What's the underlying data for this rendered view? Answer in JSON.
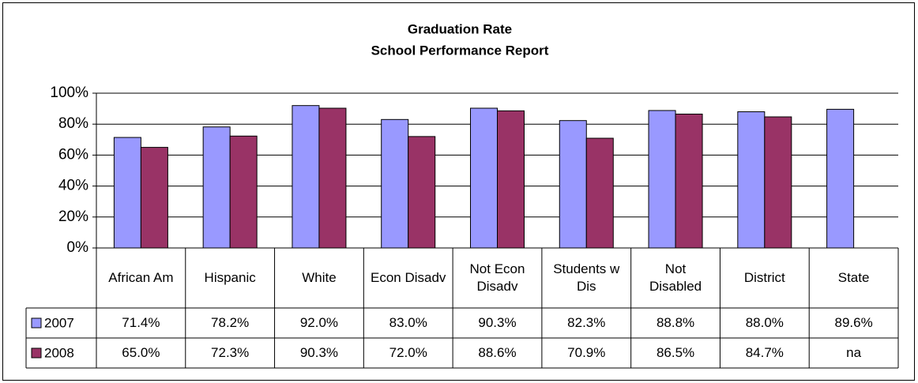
{
  "chart_data": {
    "type": "bar",
    "title": "Graduation Rate",
    "subtitle": "School Performance Report",
    "categories": [
      "African Am",
      "Hispanic",
      "White",
      "Econ Disadv",
      "Not Econ Disadv",
      "Students w Dis",
      "Not Disabled",
      "District",
      "State"
    ],
    "series": [
      {
        "name": "2007",
        "color": "#9999ff",
        "values": [
          71.4,
          78.2,
          92.0,
          83.0,
          90.3,
          82.3,
          88.8,
          88.0,
          89.6
        ],
        "value_labels": [
          "71.4%",
          "78.2%",
          "92.0%",
          "83.0%",
          "90.3%",
          "82.3%",
          "88.8%",
          "88.0%",
          "89.6%"
        ]
      },
      {
        "name": "2008",
        "color": "#993366",
        "values": [
          65.0,
          72.3,
          90.3,
          72.0,
          88.6,
          70.9,
          86.5,
          84.7,
          null
        ],
        "value_labels": [
          "65.0%",
          "72.3%",
          "90.3%",
          "72.0%",
          "88.6%",
          "70.9%",
          "86.5%",
          "84.7%",
          "na"
        ]
      }
    ],
    "ylim": [
      0,
      100
    ],
    "yticks": [
      {
        "value": 0,
        "label": "0%"
      },
      {
        "value": 20,
        "label": "20%"
      },
      {
        "value": 40,
        "label": "40%"
      },
      {
        "value": 60,
        "label": "60%"
      },
      {
        "value": 80,
        "label": "80%"
      },
      {
        "value": 100,
        "label": "100%"
      }
    ],
    "grid": true
  }
}
